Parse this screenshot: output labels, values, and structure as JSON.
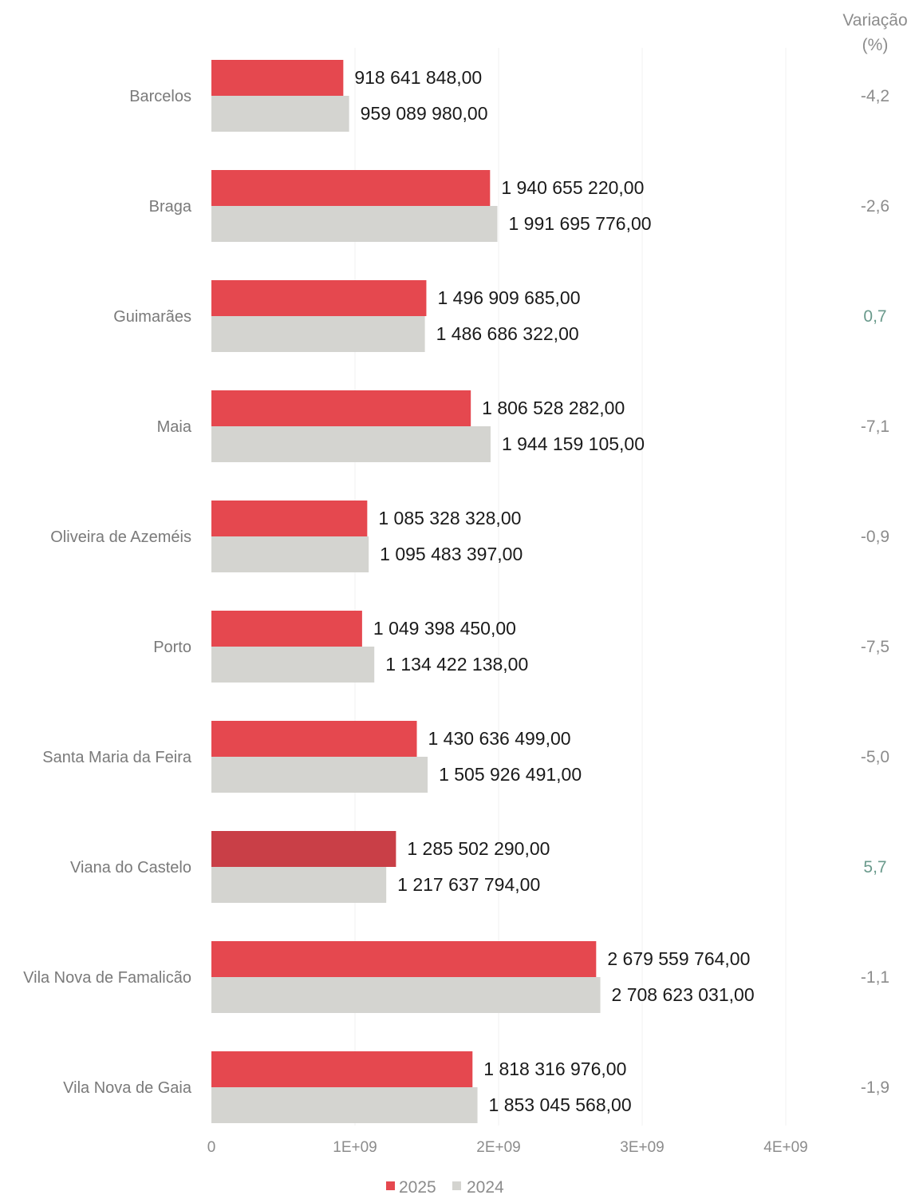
{
  "colors": {
    "series_2025": "#e5484f",
    "series_2025_highlight": "#c93f47",
    "series_2024": "#d4d4d0",
    "variation_negative": "#8c8c8c",
    "variation_positive": "#6a9a8c",
    "category_text": "#7a7a7a",
    "value_text": "#1a1a1a"
  },
  "variation_header": {
    "line1": "Variação",
    "line2": "(%)"
  },
  "chart_data": {
    "type": "bar",
    "orientation": "horizontal",
    "categories": [
      "Barcelos",
      "Braga",
      "Guimarães",
      "Maia",
      "Oliveira de Azeméis",
      "Porto",
      "Santa Maria da Feira",
      "Viana do Castelo",
      "Vila Nova de Famalicão",
      "Vila Nova de Gaia"
    ],
    "series": [
      {
        "name": "2025",
        "values": [
          918641848.0,
          1940655220.0,
          1496909685.0,
          1806528282.0,
          1085328328.0,
          1049398450.0,
          1430636499.0,
          1285502290.0,
          2679559764.0,
          1818316976.0
        ],
        "labels": [
          "918 641 848,00",
          "1 940 655 220,00",
          "1 496 909 685,00",
          "1 806 528 282,00",
          "1 085 328 328,00",
          "1 049 398 450,00",
          "1 430 636 499,00",
          "1 285 502 290,00",
          "2 679 559 764,00",
          "1 818 316 976,00"
        ]
      },
      {
        "name": "2024",
        "values": [
          959089980.0,
          1991695776.0,
          1486686322.0,
          1944159105.0,
          1095483397.0,
          1134422138.0,
          1505926491.0,
          1217637794.0,
          2708623031.0,
          1853045568.0
        ],
        "labels": [
          "959 089 980,00",
          "1 991 695 776,00",
          "1 486 686 322,00",
          "1 944 159 105,00",
          "1 095 483 397,00",
          "1 134 422 138,00",
          "1 505 926 491,00",
          "1 217 637 794,00",
          "2 708 623 031,00",
          "1 853 045 568,00"
        ]
      }
    ],
    "variation": [
      "-4,2",
      "-2,6",
      "0,7",
      "-7,1",
      "-0,9",
      "-7,5",
      "-5,0",
      "5,7",
      "-1,1",
      "-1,9"
    ],
    "variation_values": [
      -4.2,
      -2.6,
      0.7,
      -7.1,
      -0.9,
      -7.5,
      -5.0,
      5.7,
      -1.1,
      -1.9
    ],
    "x_ticks": [
      0,
      1000000000,
      2000000000,
      3000000000,
      4000000000
    ],
    "x_tick_labels": [
      "0",
      "1E+09",
      "2E+09",
      "3E+09",
      "4E+09"
    ],
    "xlim": [
      0,
      4000000000
    ],
    "grid": true,
    "legend_position": "bottom-center"
  }
}
